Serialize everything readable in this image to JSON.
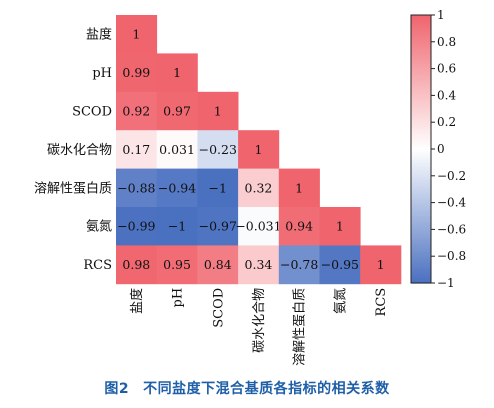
{
  "chart_data": {
    "type": "heatmap",
    "title": "",
    "xlabel": "",
    "ylabel": "",
    "labels": [
      "盐度",
      "pH",
      "SCOD",
      "碳水化合物",
      "溶解性蛋白质",
      "氨氮",
      "RCS"
    ],
    "matrix": [
      [
        "1"
      ],
      [
        "0.99",
        "1"
      ],
      [
        "0.92",
        "0.97",
        "1"
      ],
      [
        "0.17",
        "0.031",
        "−0.23",
        "1"
      ],
      [
        "−0.88",
        "−0.94",
        "−1",
        "0.32",
        "1"
      ],
      [
        "−0.99",
        "−1",
        "−0.97",
        "−0.031",
        "0.94",
        "1"
      ],
      [
        "0.98",
        "0.95",
        "0.84",
        "0.34",
        "−0.78",
        "−0.95",
        "1"
      ]
    ],
    "colorbar": {
      "min": -1,
      "max": 1,
      "ticks": [
        1,
        0.8,
        0.6,
        0.4,
        0.2,
        0,
        -0.2,
        -0.4,
        -0.6,
        -0.8,
        -1
      ],
      "tick_labels": [
        "1",
        "0.8",
        "0.6",
        "0.4",
        "0.2",
        "0",
        "−0.2",
        "−0.4",
        "−0.6",
        "−0.8",
        "−1"
      ],
      "colors": {
        "positive": "#f0646d",
        "neutral": "#ffffff",
        "negative": "#4a70c0"
      }
    },
    "grid": false,
    "legend": "right"
  },
  "caption": {
    "number": "图2",
    "text": "不同盐度下混合基质各指标的相关系数"
  }
}
